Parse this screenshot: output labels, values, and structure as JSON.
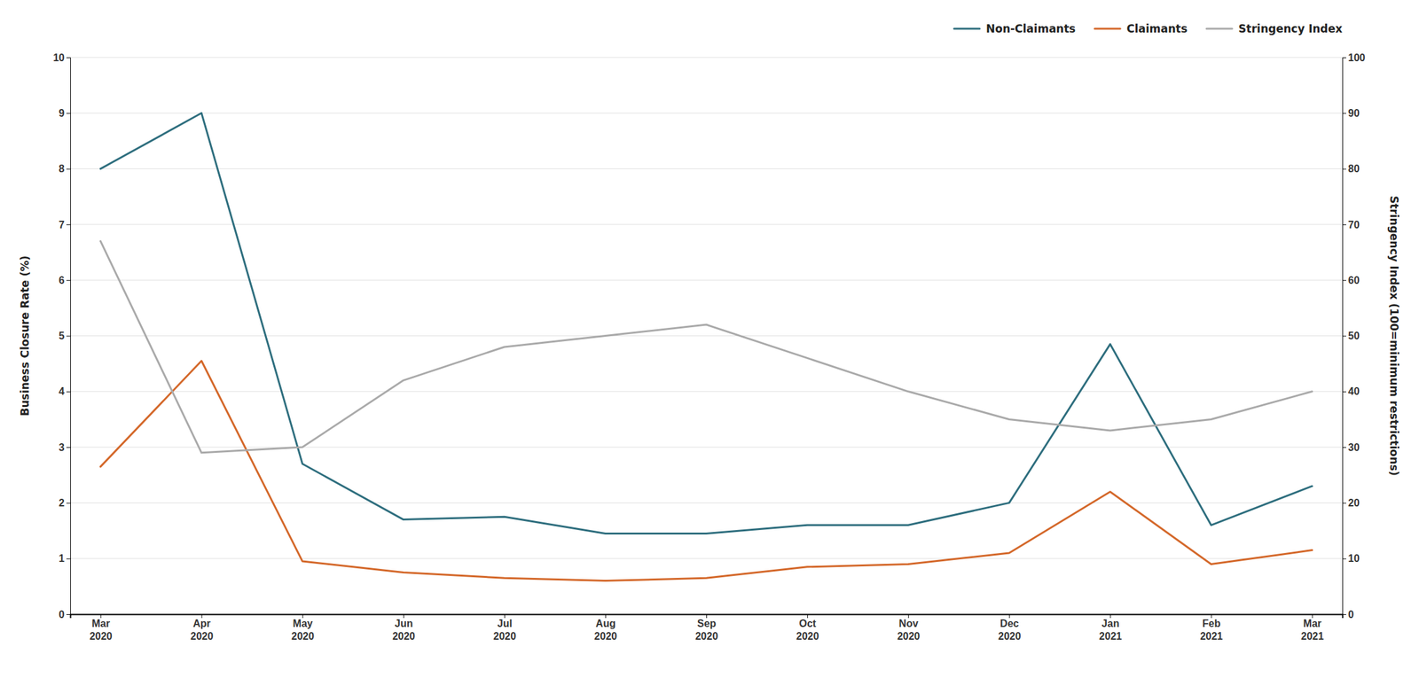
{
  "chart_data": {
    "type": "line",
    "categories": [
      "Mar\n2020",
      "Apr\n2020",
      "May\n2020",
      "Jun\n2020",
      "Jul\n2020",
      "Aug\n2020",
      "Sep\n2020",
      "Oct\n2020",
      "Nov\n2020",
      "Dec\n2020",
      "Jan\n2021",
      "Feb\n2021",
      "Mar\n2021"
    ],
    "series": [
      {
        "name": "Non-Claimants",
        "color": "#2E6E7E",
        "values": [
          8.0,
          9.0,
          2.7,
          1.7,
          1.75,
          1.45,
          1.45,
          1.6,
          1.6,
          2.0,
          4.85,
          1.6,
          2.3
        ]
      },
      {
        "name": "Claimants",
        "color": "#D4682A",
        "values": [
          2.65,
          4.55,
          0.95,
          0.75,
          0.65,
          0.6,
          0.65,
          0.85,
          0.9,
          1.1,
          2.2,
          0.9,
          1.15
        ]
      },
      {
        "name": "Stringency Index",
        "color": "#AAAAAA",
        "axis": "y2",
        "values": [
          67,
          29,
          30,
          42,
          48,
          50,
          52,
          46,
          40,
          35,
          33,
          35,
          40
        ]
      }
    ],
    "ylabel": "Business Closure Rate (%)",
    "y2label": "Stringency Index (100=minimum restrictions)",
    "ylim": [
      0,
      10
    ],
    "yticks": [
      0,
      1,
      2,
      3,
      4,
      5,
      6,
      7,
      8,
      9,
      10
    ],
    "y2lim": [
      0,
      100
    ],
    "y2ticks": [
      0,
      10,
      20,
      30,
      40,
      50,
      60,
      70,
      80,
      90,
      100
    ],
    "grid": true,
    "legend": "upper right"
  }
}
